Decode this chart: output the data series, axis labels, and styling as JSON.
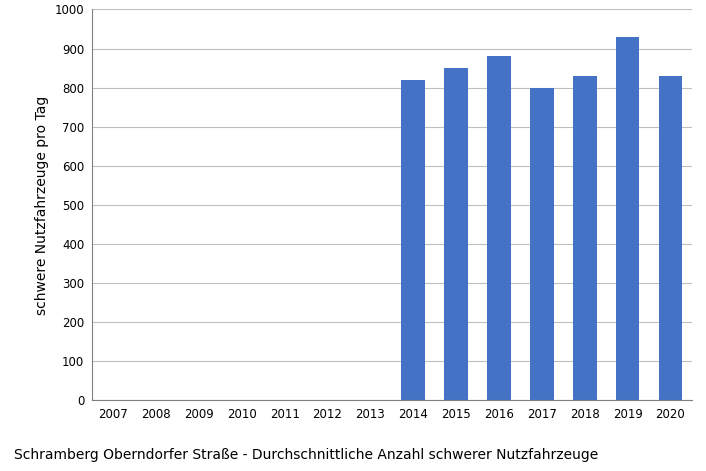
{
  "years_all": [
    2007,
    2008,
    2009,
    2010,
    2011,
    2012,
    2013,
    2014,
    2015,
    2016,
    2017,
    2018,
    2019,
    2020
  ],
  "bar_years": [
    2014,
    2015,
    2016,
    2017,
    2018,
    2019,
    2020
  ],
  "bar_values": [
    820,
    850,
    880,
    800,
    830,
    930,
    830
  ],
  "bar_color": "#4472C4",
  "ylim": [
    0,
    1000
  ],
  "yticks": [
    0,
    100,
    200,
    300,
    400,
    500,
    600,
    700,
    800,
    900,
    1000
  ],
  "ylabel": "schwere Nutzfahrzeuge pro Tag",
  "caption": "Schramberg Oberndorfer Straße - Durchschnittliche Anzahl schwerer Nutzfahrzeuge",
  "grid_color": "#BFBFBF",
  "background_color": "#FFFFFF",
  "bar_width": 0.55,
  "ylabel_fontsize": 10,
  "caption_fontsize": 10,
  "tick_fontsize": 8.5,
  "spine_color": "#808080"
}
